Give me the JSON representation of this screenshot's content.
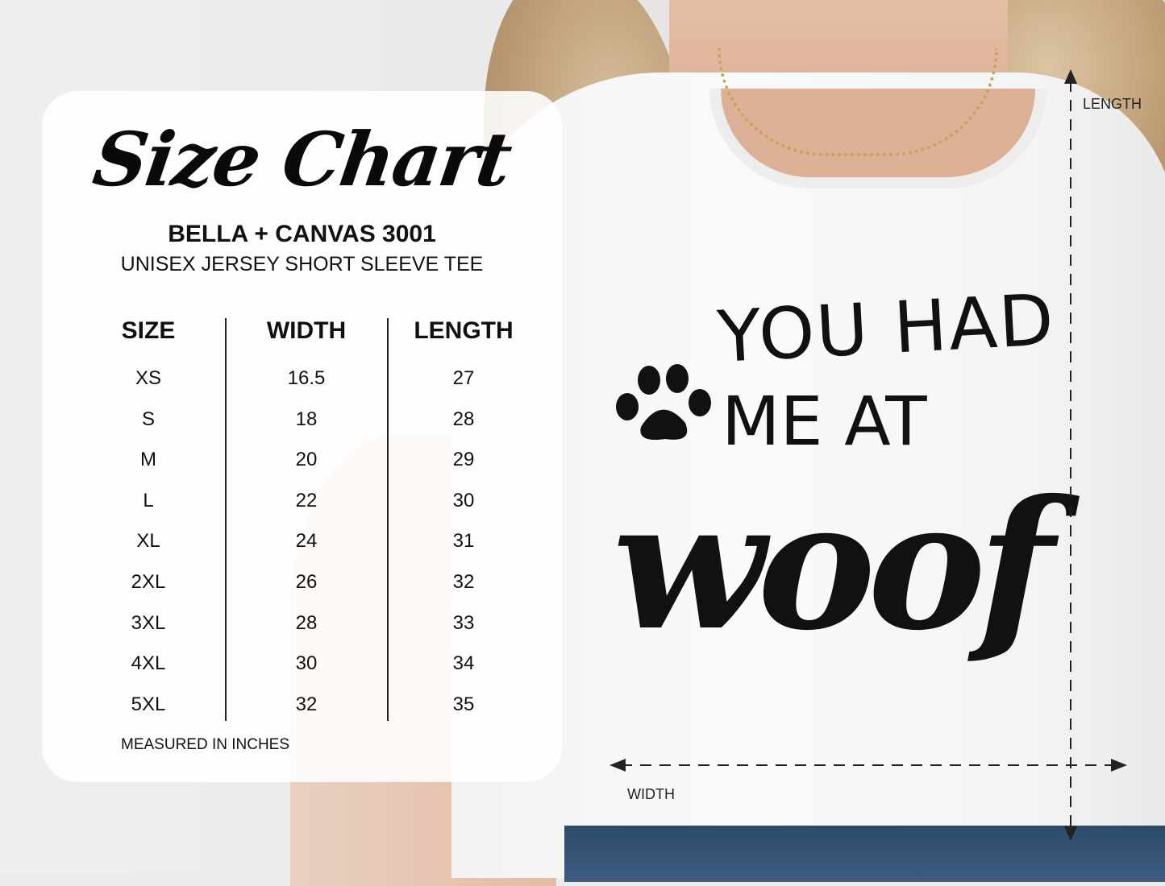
{
  "title": "Size Chart",
  "brand": "BELLA + CANVAS 3001",
  "subtitle": "UNISEX JERSEY SHORT SLEEVE TEE",
  "table": {
    "headers": [
      "SIZE",
      "WIDTH",
      "LENGTH"
    ],
    "sizes": [
      "XS",
      "S",
      "M",
      "L",
      "XL",
      "2XL",
      "3XL",
      "4XL",
      "5XL"
    ],
    "widths": [
      "16.5",
      "18",
      "20",
      "22",
      "24",
      "26",
      "28",
      "30",
      "32"
    ],
    "lengths": [
      "27",
      "28",
      "29",
      "30",
      "31",
      "32",
      "33",
      "34",
      "35"
    ]
  },
  "note": "MEASURED IN INCHES",
  "shirt_print": {
    "line1": "YOU HAD",
    "line2": "ME AT",
    "line3": "woof",
    "icon": "paw-print-icon"
  },
  "measure_labels": {
    "length": "LENGTH",
    "width": "WIDTH"
  }
}
